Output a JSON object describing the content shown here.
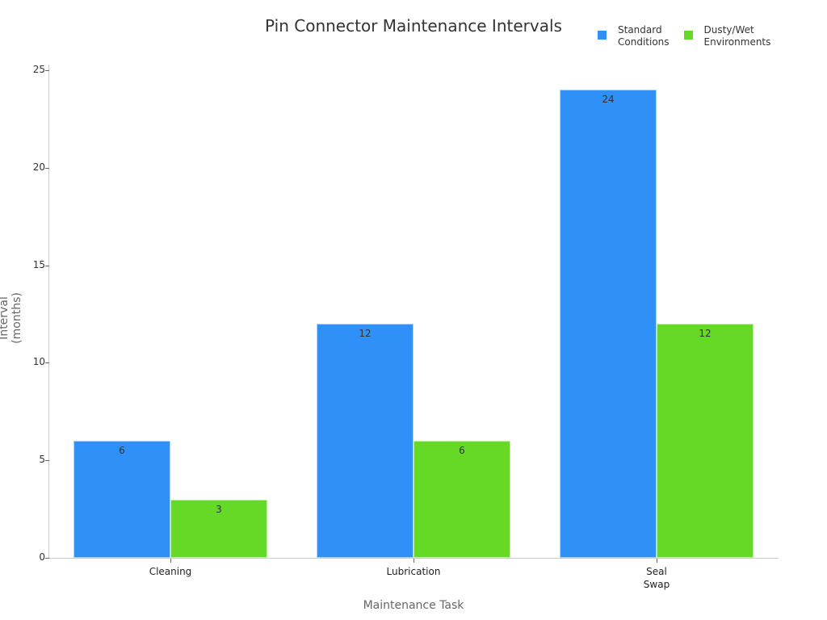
{
  "chart_data": {
    "type": "bar",
    "title": "Pin Connector Maintenance Intervals",
    "xlabel": "Maintenance Task",
    "ylabel": "Interval (months)",
    "categories": [
      "Cleaning",
      "Lubrication",
      "Seal\nSwap"
    ],
    "series": [
      {
        "name": "Standard\nConditions",
        "color": "#2f91f7",
        "values": [
          6,
          12,
          24
        ]
      },
      {
        "name": "Dusty/Wet\nEnvironments",
        "color": "#66d927",
        "values": [
          3,
          6,
          12
        ]
      }
    ],
    "ylim": [
      0,
      25
    ],
    "yticks": [
      "0",
      "5",
      "10",
      "15",
      "20",
      "25"
    ],
    "grid": false,
    "legend_position": "top-right"
  }
}
